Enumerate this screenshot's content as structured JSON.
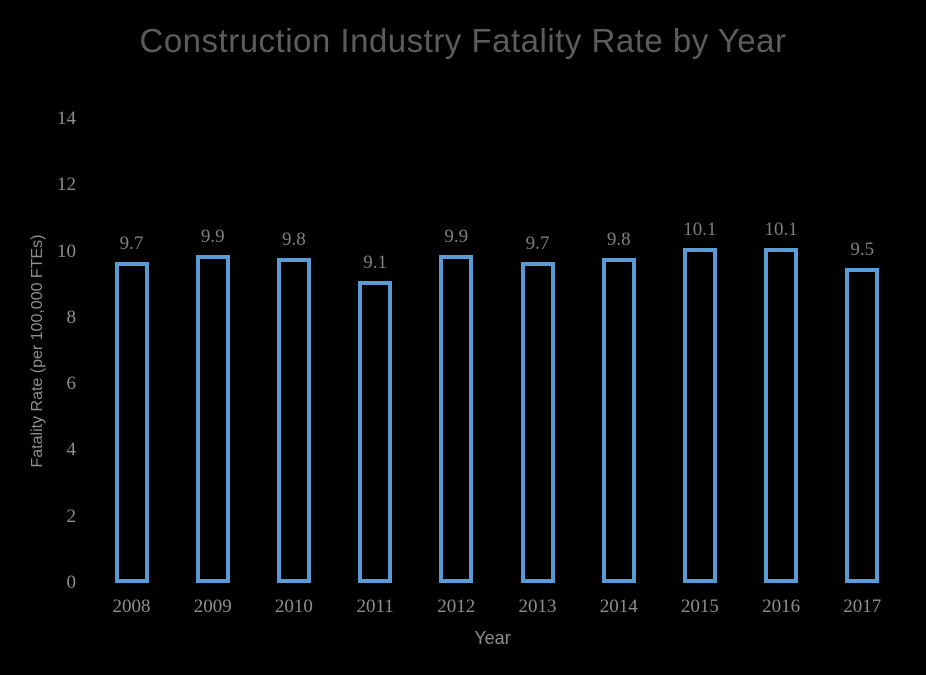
{
  "chart_data": {
    "type": "bar",
    "title": "Construction Industry Fatality Rate by Year",
    "xlabel": "Year",
    "ylabel": "Fatality Rate (per 100,000 FTEs)",
    "categories": [
      "2008",
      "2009",
      "2010",
      "2011",
      "2012",
      "2013",
      "2014",
      "2015",
      "2016",
      "2017"
    ],
    "values": [
      9.7,
      9.9,
      9.8,
      9.1,
      9.9,
      9.7,
      9.8,
      10.1,
      10.1,
      9.5
    ],
    "data_labels": [
      "9.7",
      "9.9",
      "9.8",
      "9.1",
      "9.9",
      "9.7",
      "9.8",
      "10.1",
      "10.1",
      "9.5"
    ],
    "ylim": [
      0,
      14
    ],
    "yticks": [
      0,
      2,
      4,
      6,
      8,
      10,
      12,
      14
    ],
    "grid": false,
    "legend": "none",
    "colors": {
      "background": "#000000",
      "bar_outline": "#5B9BD5",
      "bar_fill": "#000000",
      "title_text": "#5c5c5c",
      "axis_text": "#8e8e8e",
      "data_label_text": "#7f7f7f"
    }
  }
}
